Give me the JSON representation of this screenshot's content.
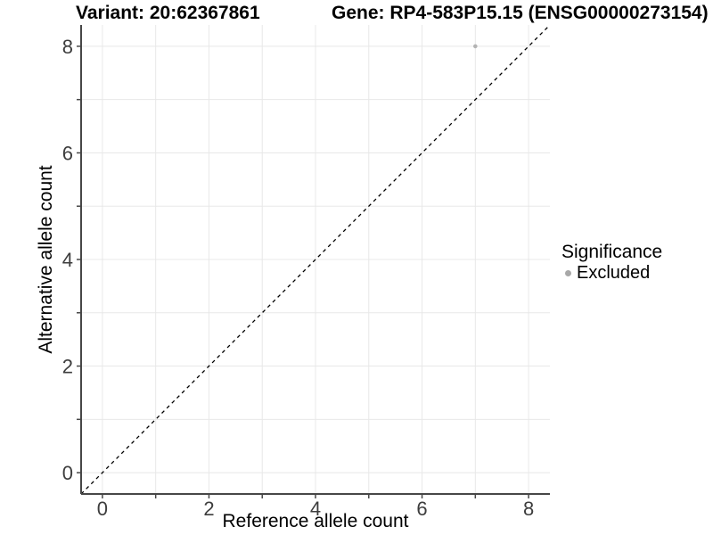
{
  "chart_data": {
    "type": "scatter",
    "title_left": "Variant: 20:62367861",
    "title_right": "Gene: RP4-583P15.15 (ENSG00000273154)",
    "xlabel": "Reference allele count",
    "ylabel": "Alternative allele count",
    "xlim": [
      -0.4,
      8.4
    ],
    "ylim": [
      -0.4,
      8.4
    ],
    "x_major_ticks": [
      0,
      2,
      4,
      6,
      8
    ],
    "y_major_ticks": [
      0,
      2,
      4,
      6,
      8
    ],
    "tick_interval": 1,
    "grid": true,
    "grid_interval": 1,
    "reference_line": {
      "type": "identity",
      "slope": 1,
      "intercept": 0,
      "style": "dashed",
      "color": "#000000"
    },
    "series": [
      {
        "name": "Excluded",
        "color": "#b3b3b3",
        "points": [
          {
            "x": 7,
            "y": 8
          }
        ]
      }
    ],
    "legend": {
      "title": "Significance",
      "position": "right",
      "entries": [
        {
          "label": "Excluded",
          "color": "#a8a8a8"
        }
      ]
    },
    "style": {
      "background": "#ffffff",
      "grid_color": "#e8e8e8",
      "axis_color": "#474747",
      "tick_label_color": "#3d3d3d",
      "point_radius": 2.3,
      "tick_label_font_px": 22
    }
  }
}
